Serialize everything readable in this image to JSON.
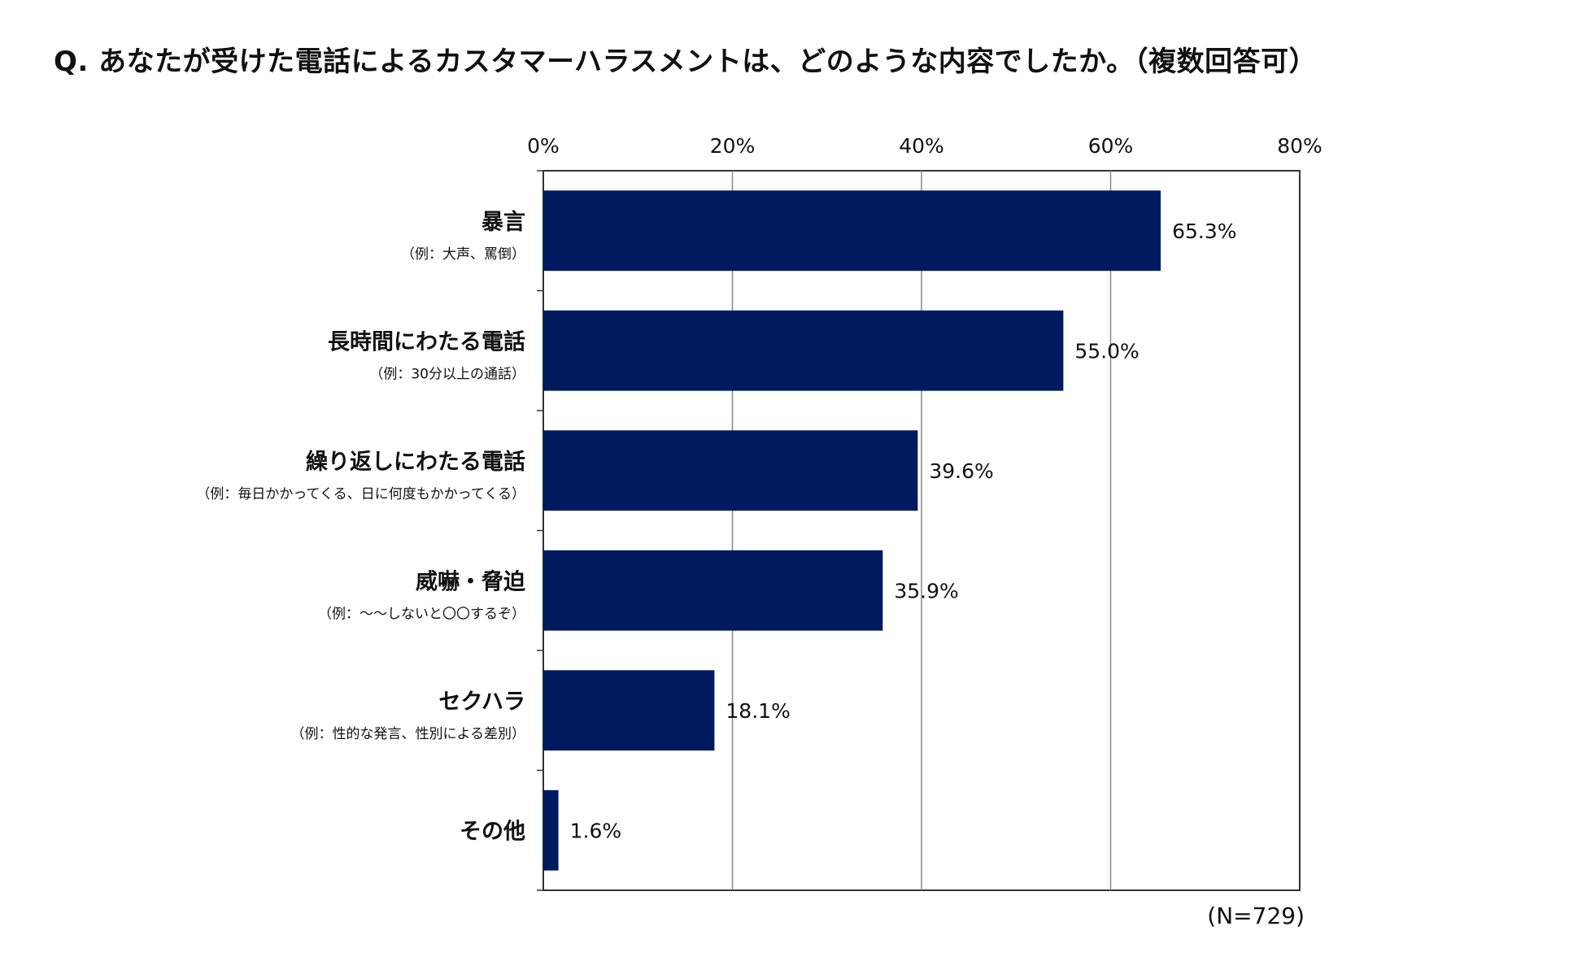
{
  "title": "Q. あなたが受けた電話によるカスタマーハラスメントは、どのような内容でしたか。（複数回答可）",
  "note": "(N=729)",
  "colors": {
    "bar": "#001a60",
    "grid": "#888888",
    "axis": "#333333",
    "text": "#111111"
  },
  "chart_data": {
    "type": "bar",
    "orientation": "horizontal",
    "title": "Q. あなたが受けた電話によるカスタマーハラスメントは、どのような内容でしたか。（複数回答可）",
    "xlim": [
      0,
      80
    ],
    "xticks": [
      0,
      20,
      40,
      60,
      80
    ],
    "xtick_labels": [
      "0%",
      "20%",
      "40%",
      "60%",
      "80%"
    ],
    "grid": true,
    "categories": [
      {
        "label": "暴言",
        "sub": "（例：大声、罵倒）",
        "value": 65.3,
        "value_label": "65.3%"
      },
      {
        "label": "長時間にわたる電話",
        "sub": "（例：30分以上の通話）",
        "value": 55.0,
        "value_label": "55.0%"
      },
      {
        "label": "繰り返しにわたる電話",
        "sub": "（例：毎日かかってくる、日に何度もかかってくる）",
        "value": 39.6,
        "value_label": "39.6%"
      },
      {
        "label": "威嚇・脅迫",
        "sub": "（例：〜〜しないと〇〇するぞ）",
        "value": 35.9,
        "value_label": "35.9%"
      },
      {
        "label": "セクハラ",
        "sub": "（例：性的な発言、性別による差別）",
        "value": 18.1,
        "value_label": "18.1%"
      },
      {
        "label": "その他",
        "sub": "",
        "value": 1.6,
        "value_label": "1.6%"
      }
    ]
  }
}
